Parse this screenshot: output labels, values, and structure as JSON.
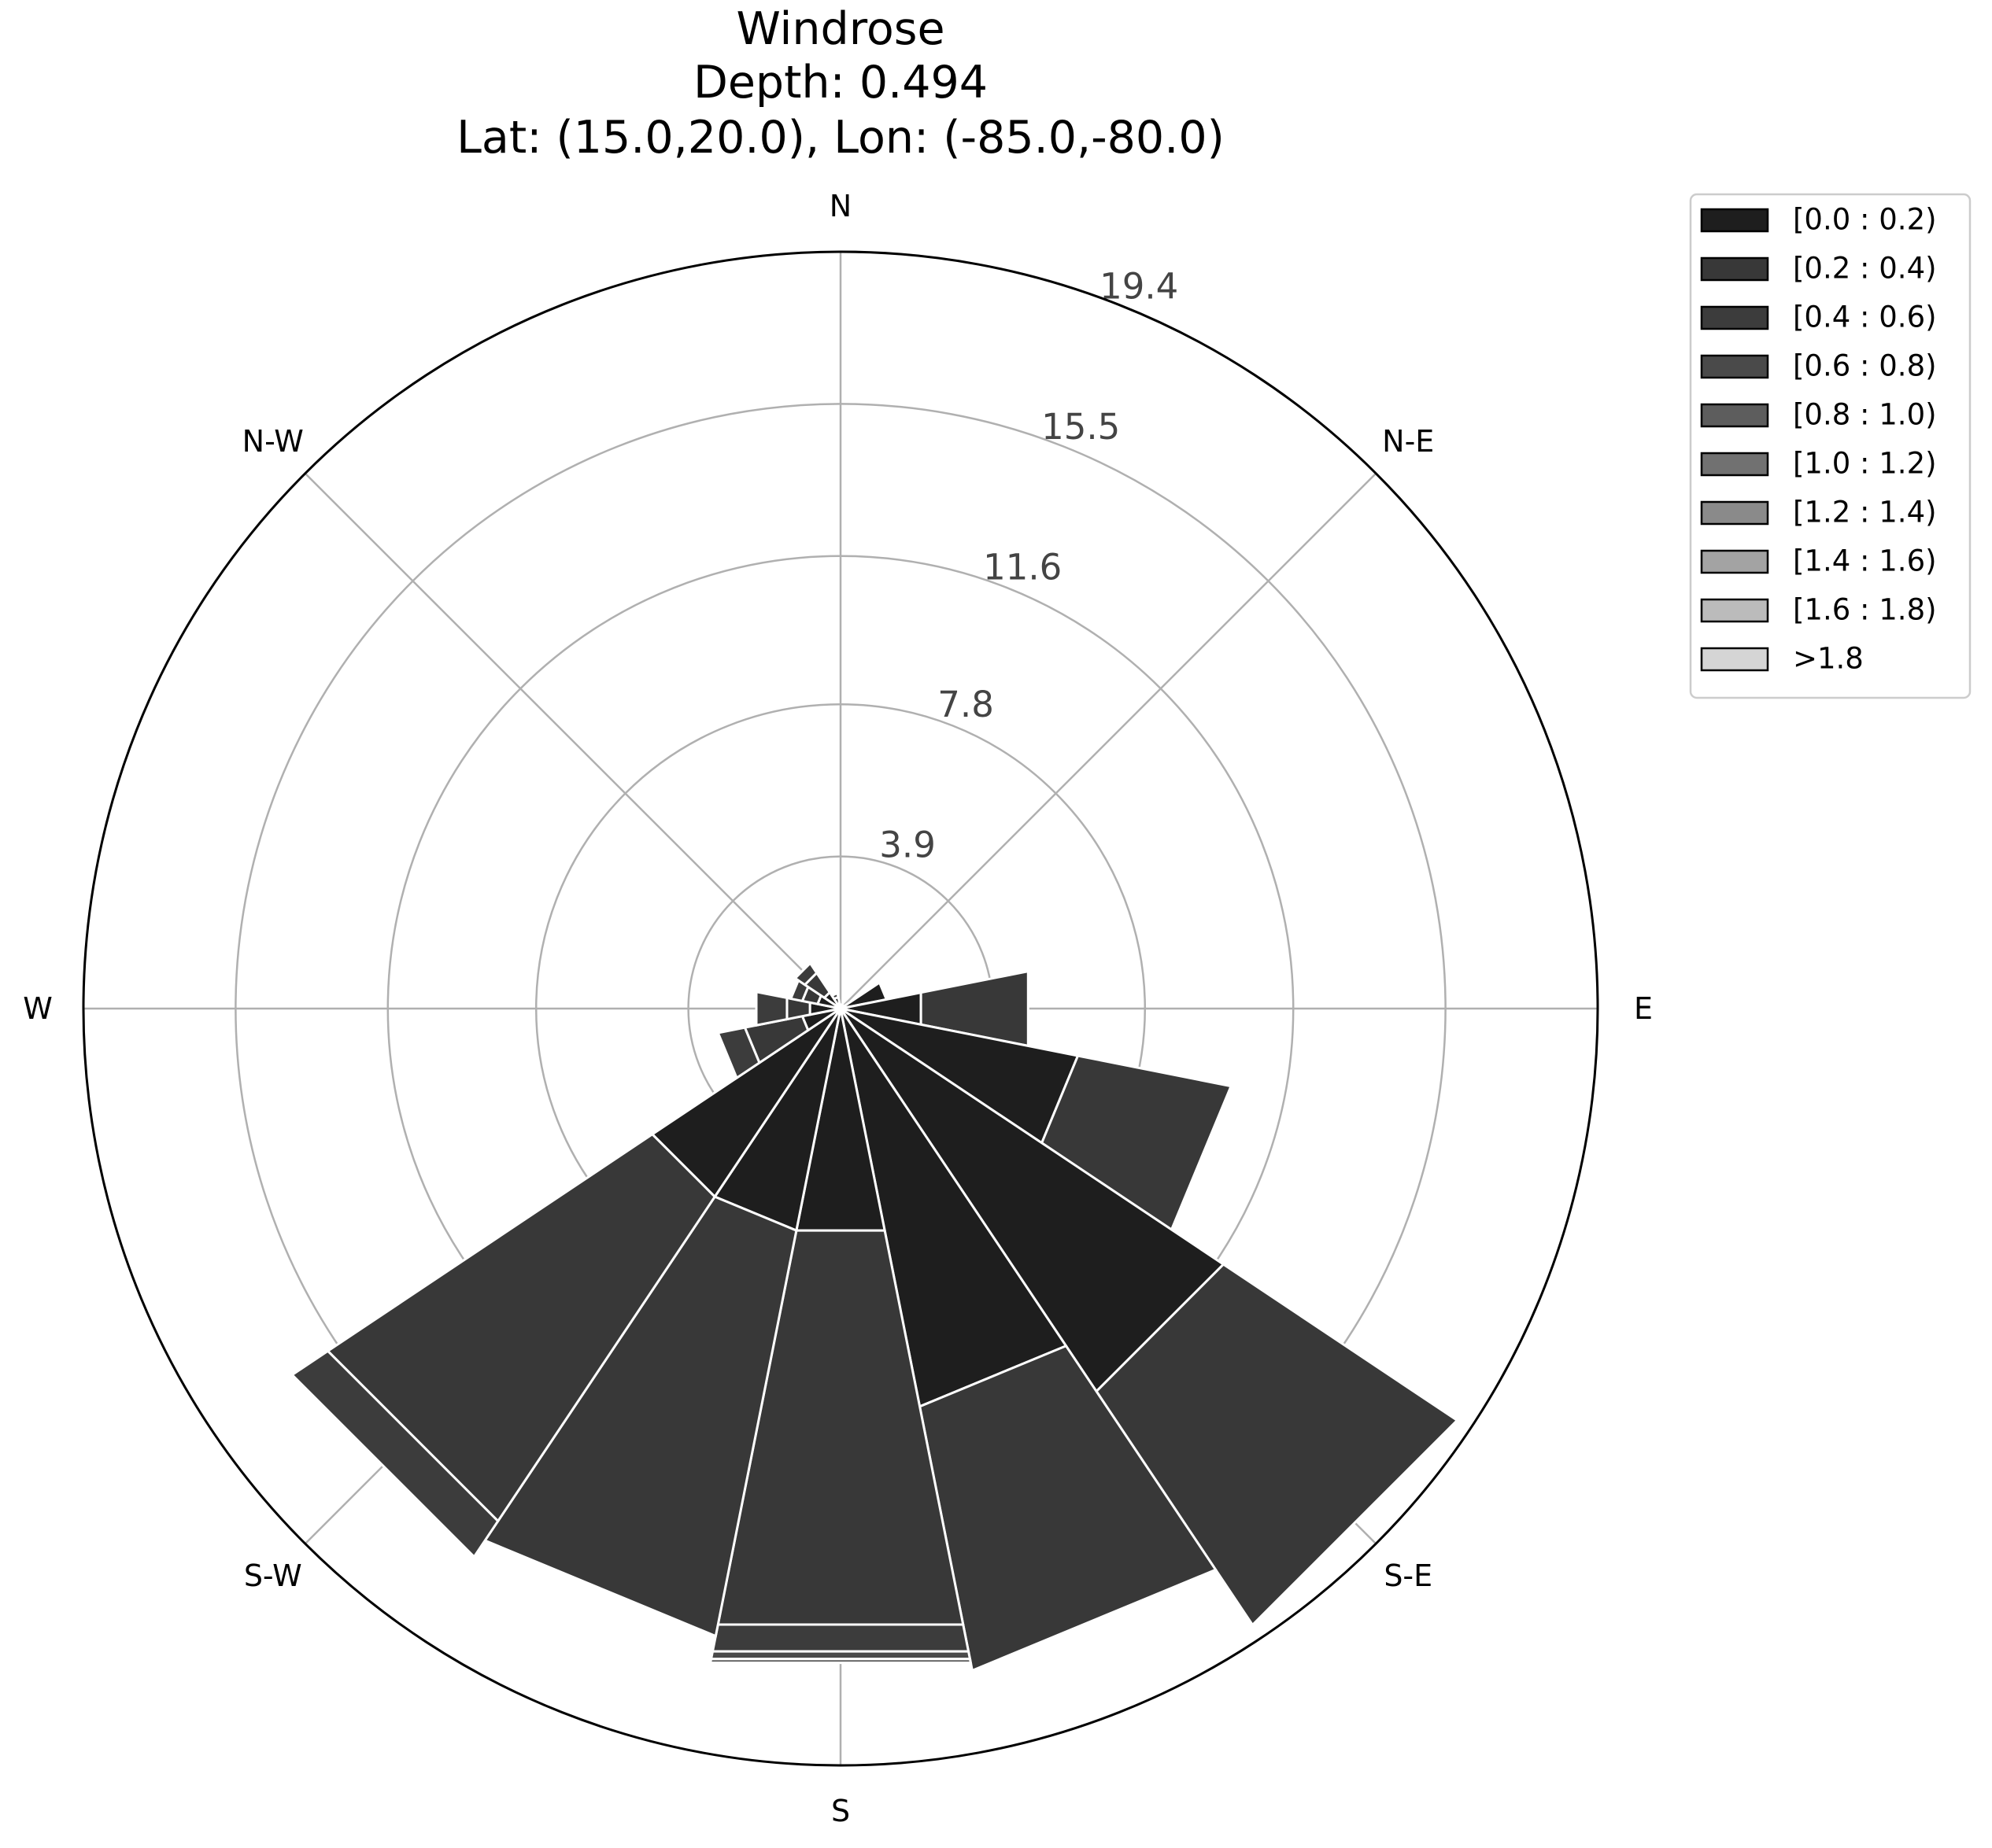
{
  "chart_data": {
    "type": "windrose",
    "title": [
      "Windrose",
      "Depth: 0.494",
      "Lat: (15.0,20.0), Lon: (-85.0,-80.0)"
    ],
    "directions": [
      "N",
      "N-E",
      "E",
      "S-E",
      "S",
      "S-W",
      "W",
      "N-W"
    ],
    "radial_ticks": [
      3.9,
      7.8,
      11.6,
      15.5,
      19.4
    ],
    "rmax": 19.4,
    "grid": true,
    "legend_position": "upper-right, outside plot",
    "bins": [
      "[0.0 : 0.2)",
      "[0.2 : 0.4)",
      "[0.4 : 0.6)",
      "[0.6 : 0.8)",
      "[0.8 : 1.0)",
      "[1.0 : 1.2)",
      "[1.2 : 1.4)",
      "[1.4 : 1.6)",
      "[1.6 : 1.8)",
      ">1.8"
    ],
    "bin_colors": [
      "#1e1e1e",
      "#383838",
      "#3c3c3c",
      "#4a4a4a",
      "#5d5d5d",
      "#717171",
      "#8a8a8a",
      "#a3a3a3",
      "#bbbbbb",
      "#d5d5d5"
    ],
    "sectors": [
      {
        "direction_deg": 0.0,
        "cumulative": [
          0.0
        ]
      },
      {
        "direction_deg": 22.5,
        "cumulative": [
          0.1
        ]
      },
      {
        "direction_deg": 45.0,
        "cumulative": [
          0.1
        ]
      },
      {
        "direction_deg": 67.5,
        "cumulative": [
          1.2
        ]
      },
      {
        "direction_deg": 90.0,
        "cumulative": [
          2.1,
          4.9
        ]
      },
      {
        "direction_deg": 112.5,
        "cumulative": [
          6.2,
          10.2
        ]
      },
      {
        "direction_deg": 135.0,
        "cumulative": [
          11.8,
          19.0
        ]
      },
      {
        "direction_deg": 157.5,
        "cumulative": [
          10.4,
          17.3
        ]
      },
      {
        "direction_deg": 180.0,
        "cumulative": [
          5.8,
          16.1,
          16.8,
          17.0,
          17.1
        ]
      },
      {
        "direction_deg": 202.5,
        "cumulative": [
          5.8,
          16.4
        ]
      },
      {
        "direction_deg": 225.0,
        "cumulative": [
          5.8,
          15.8,
          16.9
        ]
      },
      {
        "direction_deg": 247.5,
        "cumulative": [
          1.0,
          2.5,
          3.2
        ]
      },
      {
        "direction_deg": 270.0,
        "cumulative": [
          0.8,
          1.4,
          2.2
        ]
      },
      {
        "direction_deg": 292.5,
        "cumulative": [
          0.6,
          1.0,
          1.3
        ]
      },
      {
        "direction_deg": 315.0,
        "cumulative": [
          0.5,
          1.1,
          1.4
        ]
      },
      {
        "direction_deg": 337.5,
        "cumulative": [
          0.3,
          0.4
        ]
      }
    ]
  }
}
